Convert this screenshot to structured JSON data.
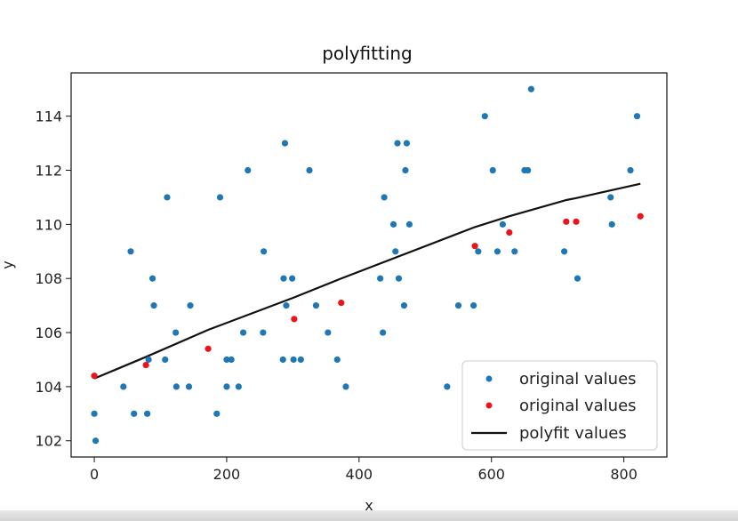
{
  "chart_data": {
    "type": "scatter",
    "title": "polyfitting",
    "xlabel": "x",
    "ylabel": "y",
    "xlim": [
      -35,
      865
    ],
    "ylim": [
      101.4,
      115.6
    ],
    "xticks": [
      0,
      200,
      400,
      600,
      800
    ],
    "yticks": [
      102,
      104,
      106,
      108,
      110,
      112,
      114
    ],
    "grid": false,
    "legend_position": "lower-right",
    "series": [
      {
        "name": "original values",
        "kind": "points",
        "color": "#1f77b4",
        "points": [
          [
            0,
            103
          ],
          [
            2,
            102
          ],
          [
            44,
            104
          ],
          [
            55,
            109
          ],
          [
            60,
            103
          ],
          [
            80,
            103
          ],
          [
            82,
            105
          ],
          [
            88,
            108
          ],
          [
            90,
            107
          ],
          [
            107,
            105
          ],
          [
            110,
            111
          ],
          [
            123,
            106
          ],
          [
            124,
            104
          ],
          [
            143,
            104
          ],
          [
            145,
            107
          ],
          [
            190,
            111
          ],
          [
            185,
            103
          ],
          [
            200,
            104
          ],
          [
            200,
            105
          ],
          [
            207,
            105
          ],
          [
            218,
            104
          ],
          [
            225,
            106
          ],
          [
            232,
            112
          ],
          [
            255,
            106
          ],
          [
            256,
            109
          ],
          [
            285,
            105
          ],
          [
            286,
            108
          ],
          [
            288,
            113
          ],
          [
            290,
            107
          ],
          [
            299,
            108
          ],
          [
            301,
            105
          ],
          [
            312,
            105
          ],
          [
            325,
            112
          ],
          [
            335,
            107
          ],
          [
            353,
            106
          ],
          [
            367,
            105
          ],
          [
            380,
            104
          ],
          [
            432,
            108
          ],
          [
            436,
            106
          ],
          [
            438,
            111
          ],
          [
            452,
            110
          ],
          [
            455,
            109
          ],
          [
            458,
            113
          ],
          [
            460,
            108
          ],
          [
            468,
            107
          ],
          [
            470,
            112
          ],
          [
            472,
            113
          ],
          [
            476,
            110
          ],
          [
            533,
            104
          ],
          [
            550,
            107
          ],
          [
            573,
            107
          ],
          [
            580,
            109
          ],
          [
            590,
            114
          ],
          [
            602,
            112
          ],
          [
            609,
            109
          ],
          [
            617,
            110
          ],
          [
            635,
            109
          ],
          [
            650,
            112
          ],
          [
            655,
            112
          ],
          [
            660,
            115
          ],
          [
            710,
            109
          ],
          [
            730,
            108
          ],
          [
            780,
            111
          ],
          [
            782,
            110
          ],
          [
            810,
            112
          ],
          [
            820,
            114
          ]
        ]
      },
      {
        "name": "original values",
        "kind": "points",
        "color": "#e8141e",
        "points": [
          [
            0,
            104.4
          ],
          [
            78,
            104.8
          ],
          [
            172,
            105.4
          ],
          [
            302,
            106.5
          ],
          [
            373,
            107.1
          ],
          [
            575,
            109.2
          ],
          [
            627,
            109.7
          ],
          [
            713,
            110.1
          ],
          [
            728,
            110.1
          ],
          [
            825,
            110.3
          ]
        ]
      },
      {
        "name": "polyfit values",
        "kind": "line",
        "color": "#111111",
        "points": [
          [
            0,
            104.3
          ],
          [
            78,
            105.1
          ],
          [
            172,
            106.1
          ],
          [
            302,
            107.3
          ],
          [
            373,
            108.0
          ],
          [
            575,
            109.9
          ],
          [
            627,
            110.3
          ],
          [
            713,
            110.9
          ],
          [
            728,
            110.97
          ],
          [
            825,
            111.5
          ]
        ]
      }
    ]
  }
}
